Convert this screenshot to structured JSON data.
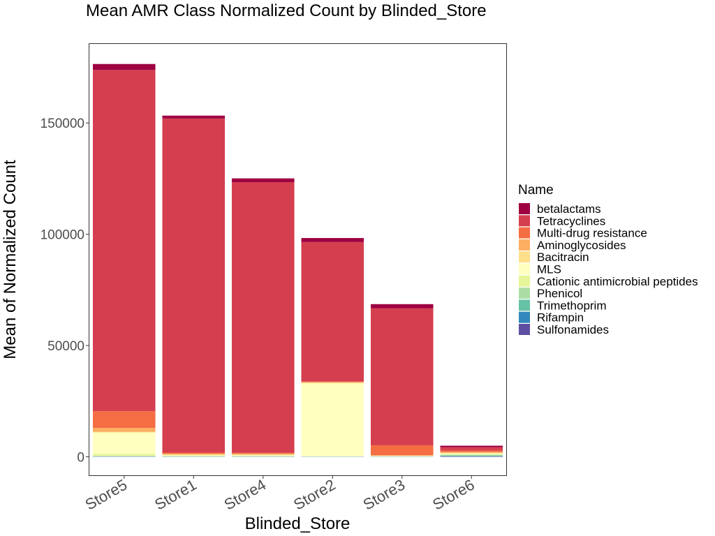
{
  "chart_data": {
    "type": "bar",
    "stacked": true,
    "title": "Mean AMR Class Normalized Count by Blinded_Store",
    "xlabel": "Blinded_Store",
    "ylabel": "Mean of Normalized Count",
    "ylim": [
      -8300,
      185500
    ],
    "yticks": [
      0,
      50000,
      100000,
      150000
    ],
    "ytick_labels": [
      "0",
      "50000",
      "100000",
      "150000"
    ],
    "grid": false,
    "legend_position": "right",
    "legend_title": "Name",
    "categories": [
      "Store5",
      "Store1",
      "Store4",
      "Store2",
      "Store3",
      "Store6"
    ],
    "series": [
      {
        "name": "Sulfonamides",
        "color": "#5E4FA2",
        "values": [
          100,
          50,
          50,
          50,
          50,
          200
        ]
      },
      {
        "name": "Rifampin",
        "color": "#3288BD",
        "values": [
          50,
          50,
          50,
          50,
          50,
          100
        ]
      },
      {
        "name": "Trimethoprim",
        "color": "#66C2A5",
        "values": [
          100,
          100,
          100,
          50,
          50,
          300
        ]
      },
      {
        "name": "Phenicol",
        "color": "#ABDDA4",
        "values": [
          150,
          100,
          100,
          50,
          50,
          300
        ]
      },
      {
        "name": "Cationic antimicrobial peptides",
        "color": "#E6F598",
        "values": [
          900,
          300,
          300,
          100,
          100,
          400
        ]
      },
      {
        "name": "MLS",
        "color": "#FFFFBF",
        "values": [
          9600,
          200,
          200,
          32700,
          100,
          300
        ]
      },
      {
        "name": "Bacitracin",
        "color": "#FEE08B",
        "values": [
          300,
          200,
          200,
          400,
          100,
          200
        ]
      },
      {
        "name": "Aminoglycosides",
        "color": "#FDAE61",
        "values": [
          1800,
          400,
          400,
          200,
          200,
          300
        ]
      },
      {
        "name": "Multi-drug resistance",
        "color": "#F46D43",
        "values": [
          7500,
          500,
          400,
          200,
          4500,
          700
        ]
      },
      {
        "name": "Tetracyclines",
        "color": "#D53E4F",
        "values": [
          153300,
          150100,
          121600,
          62700,
          61500,
          1500
        ]
      },
      {
        "name": "betalactams",
        "color": "#9E0142",
        "values": [
          2700,
          1300,
          1700,
          1800,
          1900,
          700
        ]
      }
    ]
  }
}
